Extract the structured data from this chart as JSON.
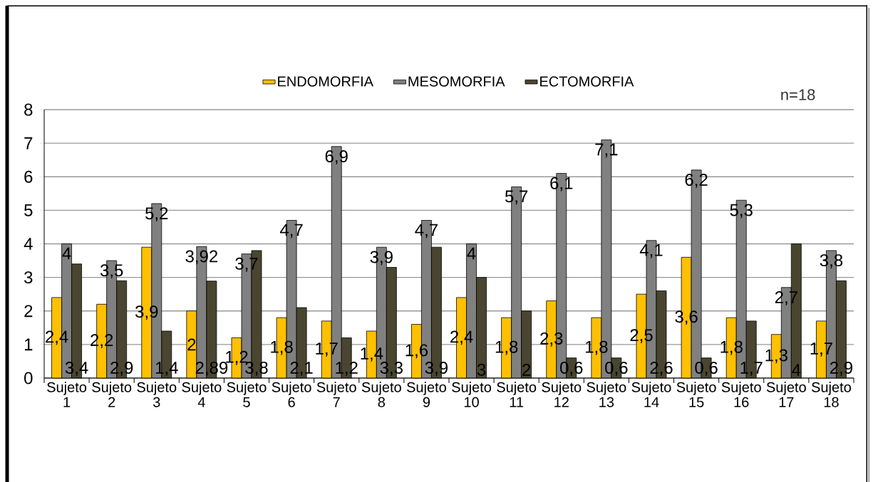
{
  "chart_data": {
    "type": "bar",
    "categories": [
      "Sujeto 1",
      "Sujeto 2",
      "Sujeto 3",
      "Sujeto 4",
      "Sujeto 5",
      "Sujeto 6",
      "Sujeto 7",
      "Sujeto 8",
      "Sujeto 9",
      "Sujeto 10",
      "Sujeto 11",
      "Sujeto 12",
      "Sujeto 13",
      "Sujeto 14",
      "Sujeto 15",
      "Sujeto 16",
      "Sujeto 17",
      "Sujeto 18"
    ],
    "series": [
      {
        "name": "ENDOMORFIA",
        "color": "#ffc000",
        "values": [
          2.4,
          2.2,
          3.9,
          2,
          1.2,
          1.8,
          1.7,
          1.4,
          1.6,
          2.4,
          1.8,
          2.3,
          1.8,
          2.5,
          3.6,
          1.8,
          1.3,
          1.7
        ],
        "value_labels": [
          "2,4",
          "2,2",
          "3,9",
          "2",
          "1,2",
          "1,8",
          "1,7",
          "1,4",
          "1,6",
          "2,4",
          "1,8",
          "2,3",
          "1,8",
          "2,5",
          "3,6",
          "1,8",
          "1,3",
          "1,7"
        ]
      },
      {
        "name": "MESOMORFIA",
        "color": "#808080",
        "values": [
          4,
          3.5,
          5.2,
          3.92,
          3.7,
          4.7,
          6.9,
          3.9,
          4.7,
          4,
          5.7,
          6.1,
          7.1,
          4.1,
          6.2,
          5.3,
          2.7,
          3.8
        ],
        "value_labels": [
          "4",
          "3,5",
          "5,2",
          "3,92",
          "3,7",
          "4,7",
          "6,9",
          "3,9",
          "4,7",
          "4",
          "5,7",
          "6,1",
          "7,1",
          "4,1",
          "6,2",
          "5,3",
          "2,7",
          "3,8"
        ]
      },
      {
        "name": "ECTOMORFIA",
        "color": "#4a4530",
        "values": [
          3.4,
          2.9,
          1.4,
          2.89,
          3.8,
          2.1,
          1.2,
          3.3,
          3.9,
          3,
          2,
          0.6,
          0.6,
          2.6,
          0.6,
          1.7,
          4,
          2.9
        ],
        "value_labels": [
          "3,4",
          "2,9",
          "1,4",
          "2,89",
          "3,8",
          "2,1",
          "1,2",
          "3,3",
          "3,9",
          "3",
          "2",
          "0,6",
          "0,6",
          "2,6",
          "0,6",
          "1,7",
          "4",
          "2,9"
        ]
      }
    ],
    "ylim": [
      0,
      8
    ],
    "yticks": [
      0,
      1,
      2,
      3,
      4,
      5,
      6,
      7,
      8
    ],
    "grid": "y",
    "legend": "top",
    "annotations": [
      "n=18"
    ]
  }
}
